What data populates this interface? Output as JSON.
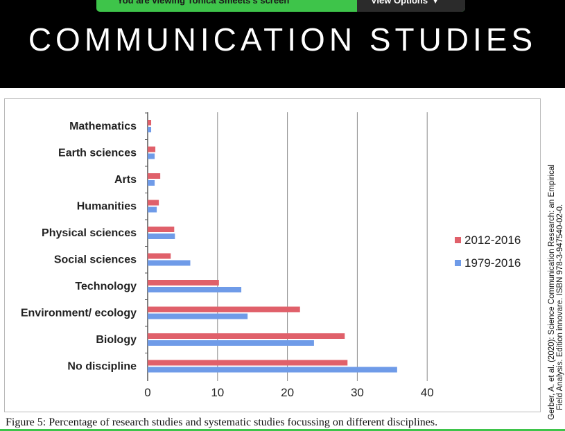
{
  "zoom_banner": {
    "viewing_text": "You are viewing Tonica Smeets's screen",
    "view_options_label": "View Options"
  },
  "slide": {
    "title": "COMMUNICATION STUDIES"
  },
  "chart_data": {
    "type": "bar",
    "orientation": "horizontal",
    "categories": [
      "Mathematics",
      "Earth sciences",
      "Arts",
      "Humanities",
      "Physical sciences",
      "Social sciences",
      "Technology",
      "Environment/ ecology",
      "Biology",
      "No discipline"
    ],
    "series": [
      {
        "name": "2012-2016",
        "color": "#e0606a",
        "values": [
          0.5,
          1.1,
          1.8,
          1.6,
          3.8,
          3.3,
          10.2,
          21.8,
          28.2,
          28.6
        ]
      },
      {
        "name": "1979-2016",
        "color": "#6f9be8",
        "values": [
          0.5,
          1.0,
          1.0,
          1.3,
          3.9,
          6.1,
          13.4,
          14.3,
          23.8,
          35.7
        ]
      }
    ],
    "xticks": [
      "0",
      "10",
      "20",
      "30",
      "40"
    ],
    "xlim": [
      0,
      40
    ],
    "grid": true,
    "legend": "right"
  },
  "caption": "Figure 5:  Percentage of research studies and systematic studies focussing on different disciplines.",
  "citation": {
    "line1": "Gerber, A. et al. (2020): Science Communication Research: an Empirical",
    "line2": "Field Analysis. Edition innovare. ISBN 978-3-947540-02-0."
  },
  "colors": {
    "banner": "#3ec44a",
    "header_bg": "#000000"
  }
}
